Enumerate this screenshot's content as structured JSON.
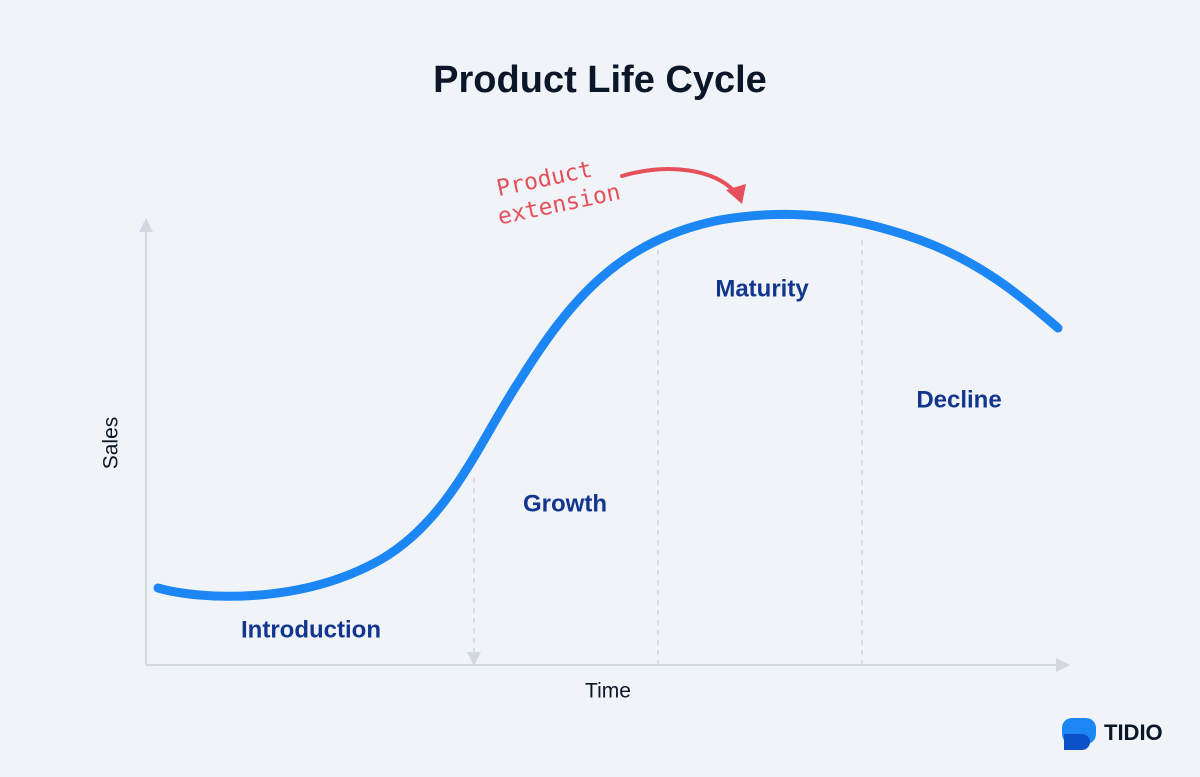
{
  "title": "Product Life Cycle",
  "axes": {
    "x_label": "Time",
    "y_label": "Sales"
  },
  "stages": [
    "Introduction",
    "Growth",
    "Maturity",
    "Decline"
  ],
  "annotation": {
    "lines": [
      "Product",
      "extension"
    ]
  },
  "brand": "TIDIO"
}
